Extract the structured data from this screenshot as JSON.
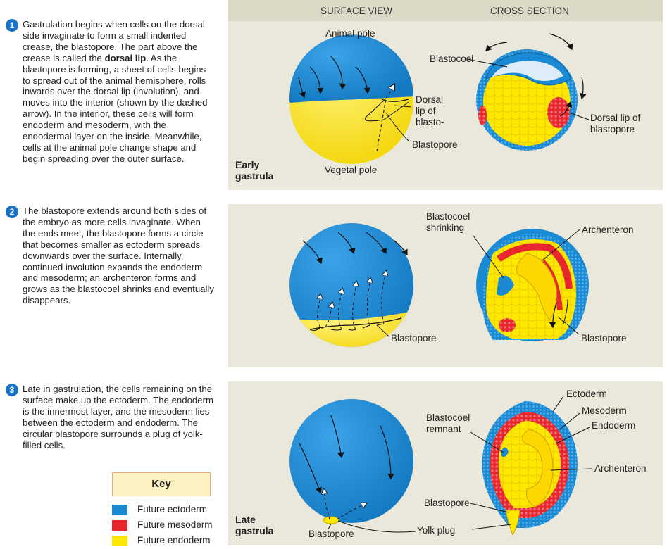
{
  "steps": [
    {
      "number": "1",
      "text_a": "Gastrulation begins when cells on the dorsal side invaginate to form a small indented crease, the blastopore. The part above the crease is called the ",
      "bold": "dorsal lip",
      "text_b": ". As the blastopore is forming, a sheet of cells begins to spread out of the animal hemisphere, rolls inwards over the dorsal lip (involution), and moves into the interior (shown by the dashed arrow). In the interior, these cells will form endoderm and mesoderm, with the endodermal layer on the inside. Meanwhile, cells at the animal pole change shape and begin spreading over the outer surface."
    },
    {
      "number": "2",
      "text": "The blastopore extends around both sides of the embryo as more cells invaginate. When the ends meet, the blastopore forms a circle that becomes smaller as ectoderm spreads downwards over the surface. Internally, continued involution expands the endoderm and mesoderm; an archenteron forms and grows as the blastocoel shrinks and eventually disappears."
    },
    {
      "number": "3",
      "text": "Late in gastrulation, the cells remaining on the surface make up the ectoderm. The endoderm is the innermost layer, and the mesoderm lies between the ectoderm and endoderm. The circular blastopore surrounds a plug of yolk-filled cells."
    }
  ],
  "headers": {
    "surface": "SURFACE VIEW",
    "cross": "CROSS SECTION"
  },
  "panel1": {
    "stage": "Early gastrula",
    "animal_pole": "Animal pole",
    "vegetal_pole": "Vegetal pole",
    "dorsal_lip_short": "Dorsal lip of blasto- pore",
    "blastopore": "Blastopore",
    "blastocoel": "Blastocoel",
    "dorsal_lip_long": "Dorsal lip of blastopore"
  },
  "panel2": {
    "blastocoel_shrinking": "Blastocoel shrinking",
    "archenteron": "Archenteron",
    "blastopore_surface": "Blastopore",
    "blastopore_cross": "Blastopore"
  },
  "panel3": {
    "stage": "Late gastrula",
    "blastopore_surface": "Blastopore",
    "blastocoel_remnant": "Blastocoel remnant",
    "ectoderm": "Ectoderm",
    "mesoderm": "Mesoderm",
    "endoderm": "Endoderm",
    "archenteron": "Archenteron",
    "blastopore_cross": "Blastopore",
    "yolk_plug": "Yolk plug"
  },
  "key": {
    "title": "Key",
    "items": [
      {
        "label": "Future ectoderm",
        "color": "#1a8ad4"
      },
      {
        "label": "Future mesoderm",
        "color": "#e8262d"
      },
      {
        "label": "Future endoderm",
        "color": "#ffe800"
      }
    ]
  },
  "colors": {
    "ectoderm": "#1a8ad4",
    "mesoderm": "#e8262d",
    "endoderm": "#ffe800",
    "panel": "#e9e8da"
  }
}
